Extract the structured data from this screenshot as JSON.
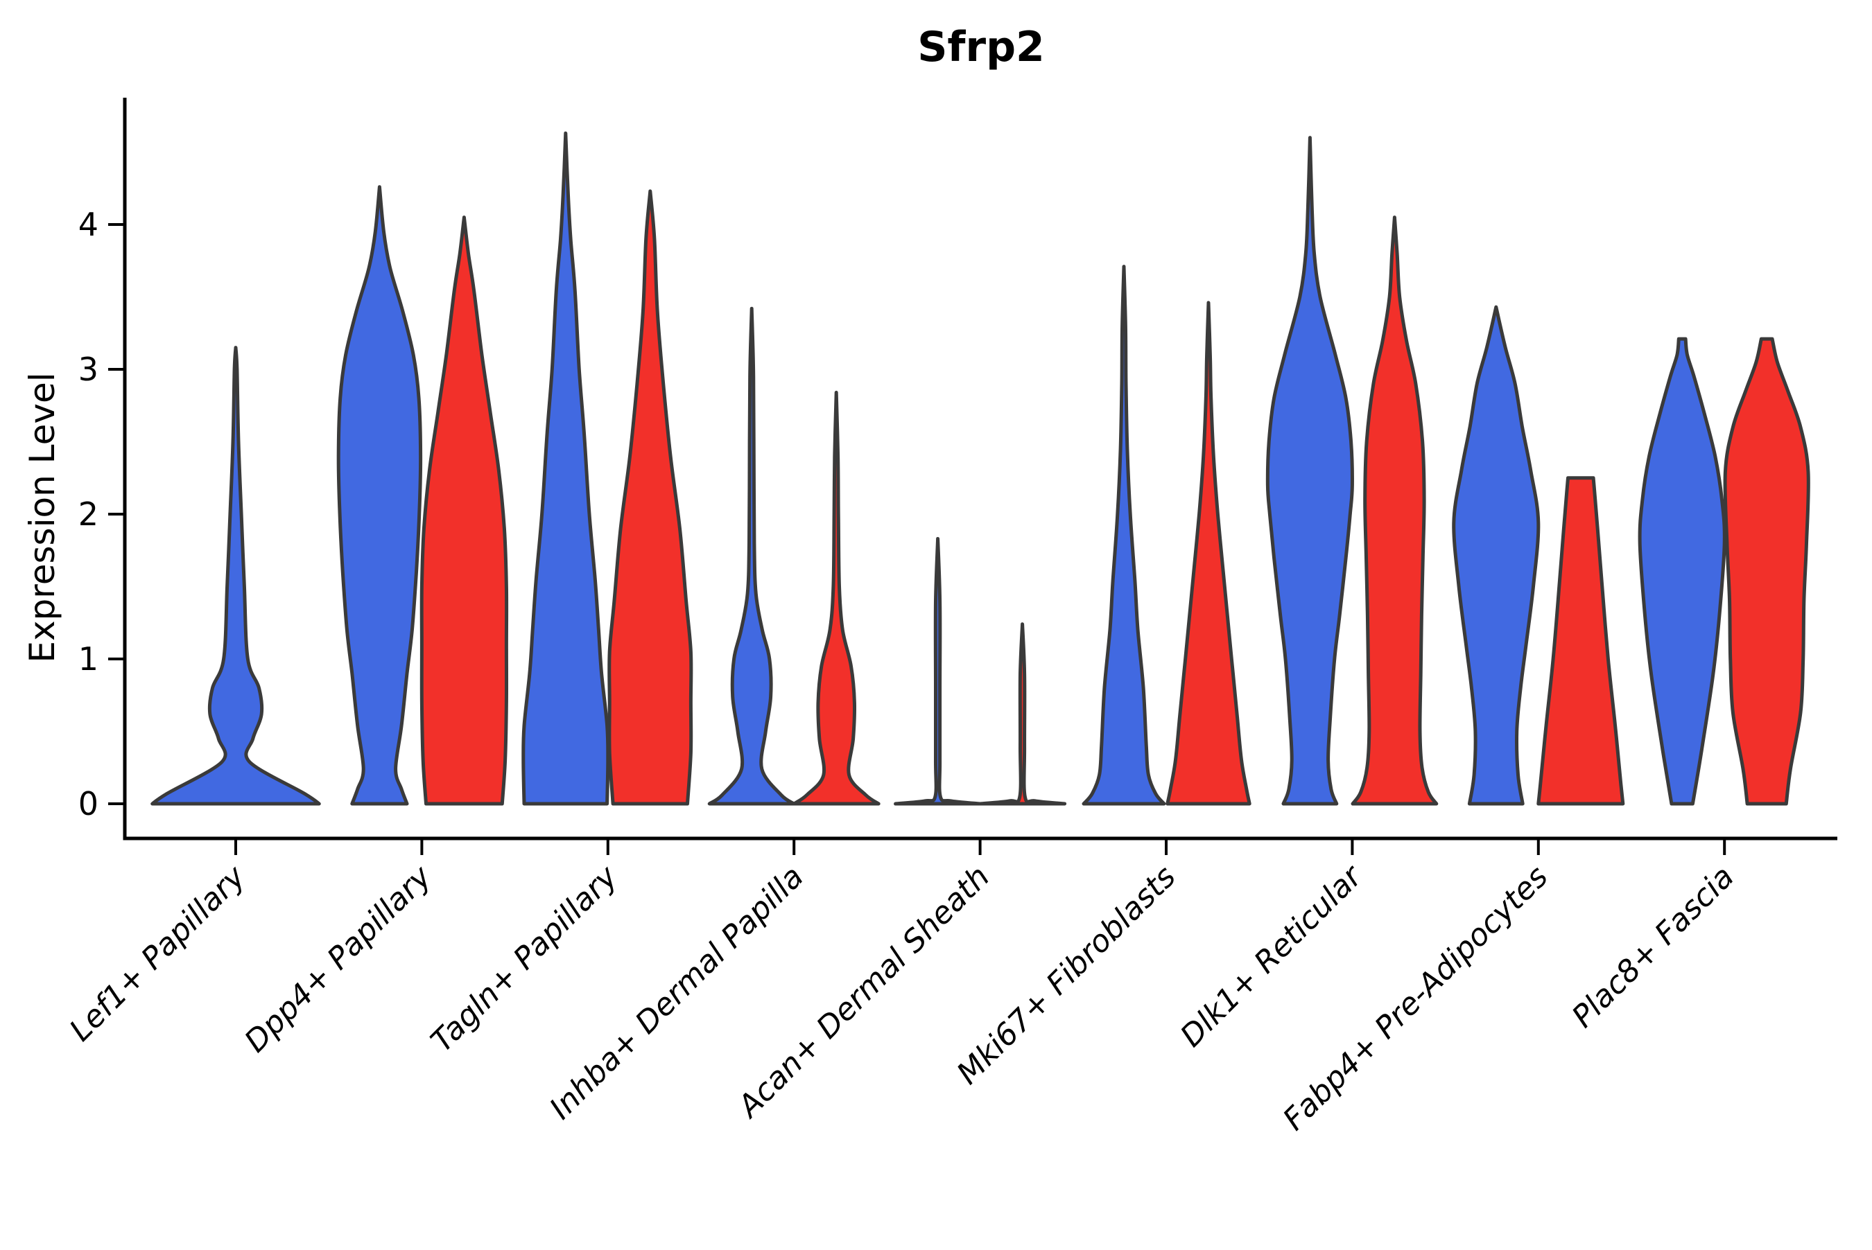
{
  "chart_data": {
    "type": "violin",
    "title": "Sfrp2",
    "ylabel": "Expression Level",
    "xlabel": "",
    "ylim": [
      0,
      4.87
    ],
    "yticks": [
      0,
      1,
      2,
      3,
      4
    ],
    "grid": false,
    "legend": "none",
    "categories": [
      "Lef1+ Papillary",
      "Dpp4+ Papillary",
      "Tagln+ Papillary",
      "Inhba+ Dermal Papilla",
      "Acan+ Dermal Sheath",
      "Mki67+ Fibroblasts",
      "Dlk1+ Reticular",
      "Fabp4+ Pre-Adipocytes",
      "Plac8+ Fascia"
    ],
    "series": [
      {
        "name": "blue",
        "color": "#4169E1"
      },
      {
        "name": "red",
        "color": "#F2302A"
      }
    ],
    "outline_color": "#3A3A3A",
    "axis_color": "#000000",
    "max_expression_blue": [
      3.15,
      4.26,
      4.63,
      3.42,
      1.83,
      3.71,
      4.6,
      3.43,
      3.21
    ],
    "max_expression_red": [
      null,
      4.05,
      4.23,
      2.84,
      1.24,
      3.46,
      4.05,
      2.25,
      3.21
    ],
    "violins": [
      {
        "category": 0,
        "series": "blue",
        "single": true,
        "top": 3.15,
        "profile": [
          [
            0,
            0.97
          ],
          [
            0.07,
            0.8
          ],
          [
            0.29,
            0.16
          ],
          [
            0.45,
            0.2
          ],
          [
            0.62,
            0.3
          ],
          [
            0.8,
            0.27
          ],
          [
            1.0,
            0.14
          ],
          [
            1.5,
            0.1
          ],
          [
            2.0,
            0.065
          ],
          [
            2.5,
            0.032
          ],
          [
            3.0,
            0.015
          ],
          [
            3.15,
            0
          ]
        ]
      },
      {
        "category": 1,
        "series": "blue",
        "single": false,
        "top": 4.26,
        "profile": [
          [
            0,
            0.65
          ],
          [
            0.1,
            0.52
          ],
          [
            0.24,
            0.38
          ],
          [
            0.54,
            0.52
          ],
          [
            0.9,
            0.65
          ],
          [
            1.2,
            0.77
          ],
          [
            1.6,
            0.87
          ],
          [
            2.0,
            0.94
          ],
          [
            2.4,
            0.97
          ],
          [
            2.8,
            0.93
          ],
          [
            3.1,
            0.8
          ],
          [
            3.4,
            0.55
          ],
          [
            3.7,
            0.25
          ],
          [
            3.95,
            0.1
          ],
          [
            4.26,
            0
          ]
        ]
      },
      {
        "category": 1,
        "series": "red",
        "single": false,
        "top": 4.05,
        "profile": [
          [
            0,
            0.9
          ],
          [
            0.3,
            0.97
          ],
          [
            0.7,
            1.0
          ],
          [
            1.1,
            1.0
          ],
          [
            1.5,
            1.0
          ],
          [
            1.9,
            0.95
          ],
          [
            2.3,
            0.82
          ],
          [
            2.7,
            0.62
          ],
          [
            3.1,
            0.42
          ],
          [
            3.55,
            0.23
          ],
          [
            3.8,
            0.1
          ],
          [
            4.05,
            0
          ]
        ]
      },
      {
        "category": 2,
        "series": "blue",
        "single": false,
        "top": 4.63,
        "profile": [
          [
            0,
            0.98
          ],
          [
            0.3,
            1.0
          ],
          [
            0.54,
            0.98
          ],
          [
            0.9,
            0.85
          ],
          [
            1.2,
            0.78
          ],
          [
            1.54,
            0.7
          ],
          [
            2.0,
            0.56
          ],
          [
            2.55,
            0.44
          ],
          [
            3.0,
            0.32
          ],
          [
            3.55,
            0.22
          ],
          [
            3.9,
            0.12
          ],
          [
            4.2,
            0.06
          ],
          [
            4.63,
            0
          ]
        ]
      },
      {
        "category": 2,
        "series": "red",
        "single": false,
        "top": 4.23,
        "profile": [
          [
            0,
            0.88
          ],
          [
            0.35,
            0.96
          ],
          [
            0.7,
            0.96
          ],
          [
            1.05,
            0.96
          ],
          [
            1.4,
            0.85
          ],
          [
            1.9,
            0.7
          ],
          [
            2.4,
            0.48
          ],
          [
            2.9,
            0.31
          ],
          [
            3.4,
            0.17
          ],
          [
            3.9,
            0.1
          ],
          [
            4.23,
            0
          ]
        ]
      },
      {
        "category": 3,
        "series": "blue",
        "single": false,
        "top": 3.42,
        "profile": [
          [
            0,
            1.0
          ],
          [
            0.06,
            0.7
          ],
          [
            0.24,
            0.24
          ],
          [
            0.5,
            0.33
          ],
          [
            0.74,
            0.45
          ],
          [
            1.0,
            0.42
          ],
          [
            1.2,
            0.25
          ],
          [
            1.45,
            0.1
          ],
          [
            1.8,
            0.06
          ],
          [
            2.5,
            0.05
          ],
          [
            3.0,
            0.04
          ],
          [
            3.42,
            0
          ]
        ]
      },
      {
        "category": 3,
        "series": "red",
        "single": false,
        "top": 2.84,
        "profile": [
          [
            0,
            1.0
          ],
          [
            0.06,
            0.7
          ],
          [
            0.2,
            0.3
          ],
          [
            0.45,
            0.4
          ],
          [
            0.7,
            0.43
          ],
          [
            0.95,
            0.35
          ],
          [
            1.2,
            0.15
          ],
          [
            1.5,
            0.07
          ],
          [
            2.0,
            0.05
          ],
          [
            2.4,
            0.04
          ],
          [
            2.84,
            0
          ]
        ]
      },
      {
        "category": 4,
        "series": "blue",
        "single": false,
        "top": 1.83,
        "profile": [
          [
            0,
            1.0
          ],
          [
            0.02,
            0.3
          ],
          [
            0.05,
            0.06
          ],
          [
            0.3,
            0.05
          ],
          [
            0.8,
            0.05
          ],
          [
            1.4,
            0.05
          ],
          [
            1.83,
            0
          ]
        ]
      },
      {
        "category": 4,
        "series": "red",
        "single": false,
        "top": 1.24,
        "profile": [
          [
            0,
            1.0
          ],
          [
            0.02,
            0.3
          ],
          [
            0.05,
            0.06
          ],
          [
            0.4,
            0.05
          ],
          [
            0.9,
            0.05
          ],
          [
            1.24,
            0
          ]
        ]
      },
      {
        "category": 5,
        "series": "blue",
        "single": false,
        "top": 3.71,
        "profile": [
          [
            0,
            0.95
          ],
          [
            0.07,
            0.75
          ],
          [
            0.2,
            0.58
          ],
          [
            0.4,
            0.53
          ],
          [
            0.8,
            0.46
          ],
          [
            1.2,
            0.33
          ],
          [
            1.54,
            0.26
          ],
          [
            2.0,
            0.15
          ],
          [
            2.45,
            0.08
          ],
          [
            2.9,
            0.05
          ],
          [
            3.3,
            0.04
          ],
          [
            3.71,
            0
          ]
        ]
      },
      {
        "category": 5,
        "series": "red",
        "single": false,
        "top": 3.46,
        "profile": [
          [
            0,
            0.97
          ],
          [
            0.1,
            0.9
          ],
          [
            0.3,
            0.78
          ],
          [
            0.6,
            0.68
          ],
          [
            0.9,
            0.58
          ],
          [
            1.2,
            0.48
          ],
          [
            1.6,
            0.35
          ],
          [
            2.0,
            0.22
          ],
          [
            2.4,
            0.12
          ],
          [
            2.8,
            0.06
          ],
          [
            3.1,
            0.04
          ],
          [
            3.46,
            0
          ]
        ]
      },
      {
        "category": 6,
        "series": "blue",
        "single": false,
        "top": 4.6,
        "profile": [
          [
            0,
            0.63
          ],
          [
            0.1,
            0.5
          ],
          [
            0.3,
            0.43
          ],
          [
            0.6,
            0.48
          ],
          [
            1.0,
            0.58
          ],
          [
            1.3,
            0.7
          ],
          [
            1.7,
            0.85
          ],
          [
            2.0,
            0.95
          ],
          [
            2.2,
            1.0
          ],
          [
            2.5,
            0.97
          ],
          [
            2.8,
            0.85
          ],
          [
            3.1,
            0.6
          ],
          [
            3.5,
            0.24
          ],
          [
            3.8,
            0.1
          ],
          [
            4.1,
            0.05
          ],
          [
            4.6,
            0
          ]
        ]
      },
      {
        "category": 6,
        "series": "red",
        "single": false,
        "top": 4.05,
        "profile": [
          [
            0,
            0.99
          ],
          [
            0.08,
            0.8
          ],
          [
            0.25,
            0.65
          ],
          [
            0.5,
            0.6
          ],
          [
            0.9,
            0.62
          ],
          [
            1.3,
            0.64
          ],
          [
            1.7,
            0.67
          ],
          [
            2.1,
            0.7
          ],
          [
            2.5,
            0.66
          ],
          [
            2.9,
            0.5
          ],
          [
            3.2,
            0.28
          ],
          [
            3.5,
            0.12
          ],
          [
            3.8,
            0.06
          ],
          [
            4.05,
            0
          ]
        ]
      },
      {
        "category": 7,
        "series": "blue",
        "single": false,
        "top": 3.43,
        "profile": [
          [
            0,
            0.63
          ],
          [
            0.2,
            0.52
          ],
          [
            0.5,
            0.49
          ],
          [
            0.8,
            0.58
          ],
          [
            1.1,
            0.71
          ],
          [
            1.5,
            0.88
          ],
          [
            1.94,
            1.0
          ],
          [
            2.3,
            0.82
          ],
          [
            2.6,
            0.62
          ],
          [
            2.9,
            0.45
          ],
          [
            3.15,
            0.22
          ],
          [
            3.43,
            0
          ]
        ]
      },
      {
        "category": 7,
        "series": "red",
        "single": false,
        "top": 2.25,
        "profile": [
          [
            0,
            1.0
          ],
          [
            0.14,
            0.95
          ],
          [
            0.53,
            0.82
          ],
          [
            1.0,
            0.65
          ],
          [
            1.53,
            0.5
          ],
          [
            1.9,
            0.4
          ],
          [
            2.15,
            0.33
          ],
          [
            2.25,
            0.3
          ]
        ]
      },
      {
        "category": 8,
        "series": "blue",
        "single": false,
        "top": 3.21,
        "profile": [
          [
            0,
            0.25
          ],
          [
            0.37,
            0.46
          ],
          [
            0.89,
            0.73
          ],
          [
            1.3,
            0.88
          ],
          [
            1.8,
            1.0
          ],
          [
            2.1,
            0.94
          ],
          [
            2.4,
            0.78
          ],
          [
            2.7,
            0.52
          ],
          [
            2.95,
            0.28
          ],
          [
            3.1,
            0.12
          ],
          [
            3.21,
            0.08
          ]
        ]
      },
      {
        "category": 8,
        "series": "red",
        "single": false,
        "top": 3.21,
        "profile": [
          [
            0,
            0.46
          ],
          [
            0.24,
            0.56
          ],
          [
            0.63,
            0.8
          ],
          [
            1.0,
            0.86
          ],
          [
            1.41,
            0.88
          ],
          [
            1.8,
            0.94
          ],
          [
            2.29,
            0.98
          ],
          [
            2.6,
            0.8
          ],
          [
            2.85,
            0.5
          ],
          [
            3.05,
            0.25
          ],
          [
            3.21,
            0.13
          ]
        ]
      }
    ]
  }
}
